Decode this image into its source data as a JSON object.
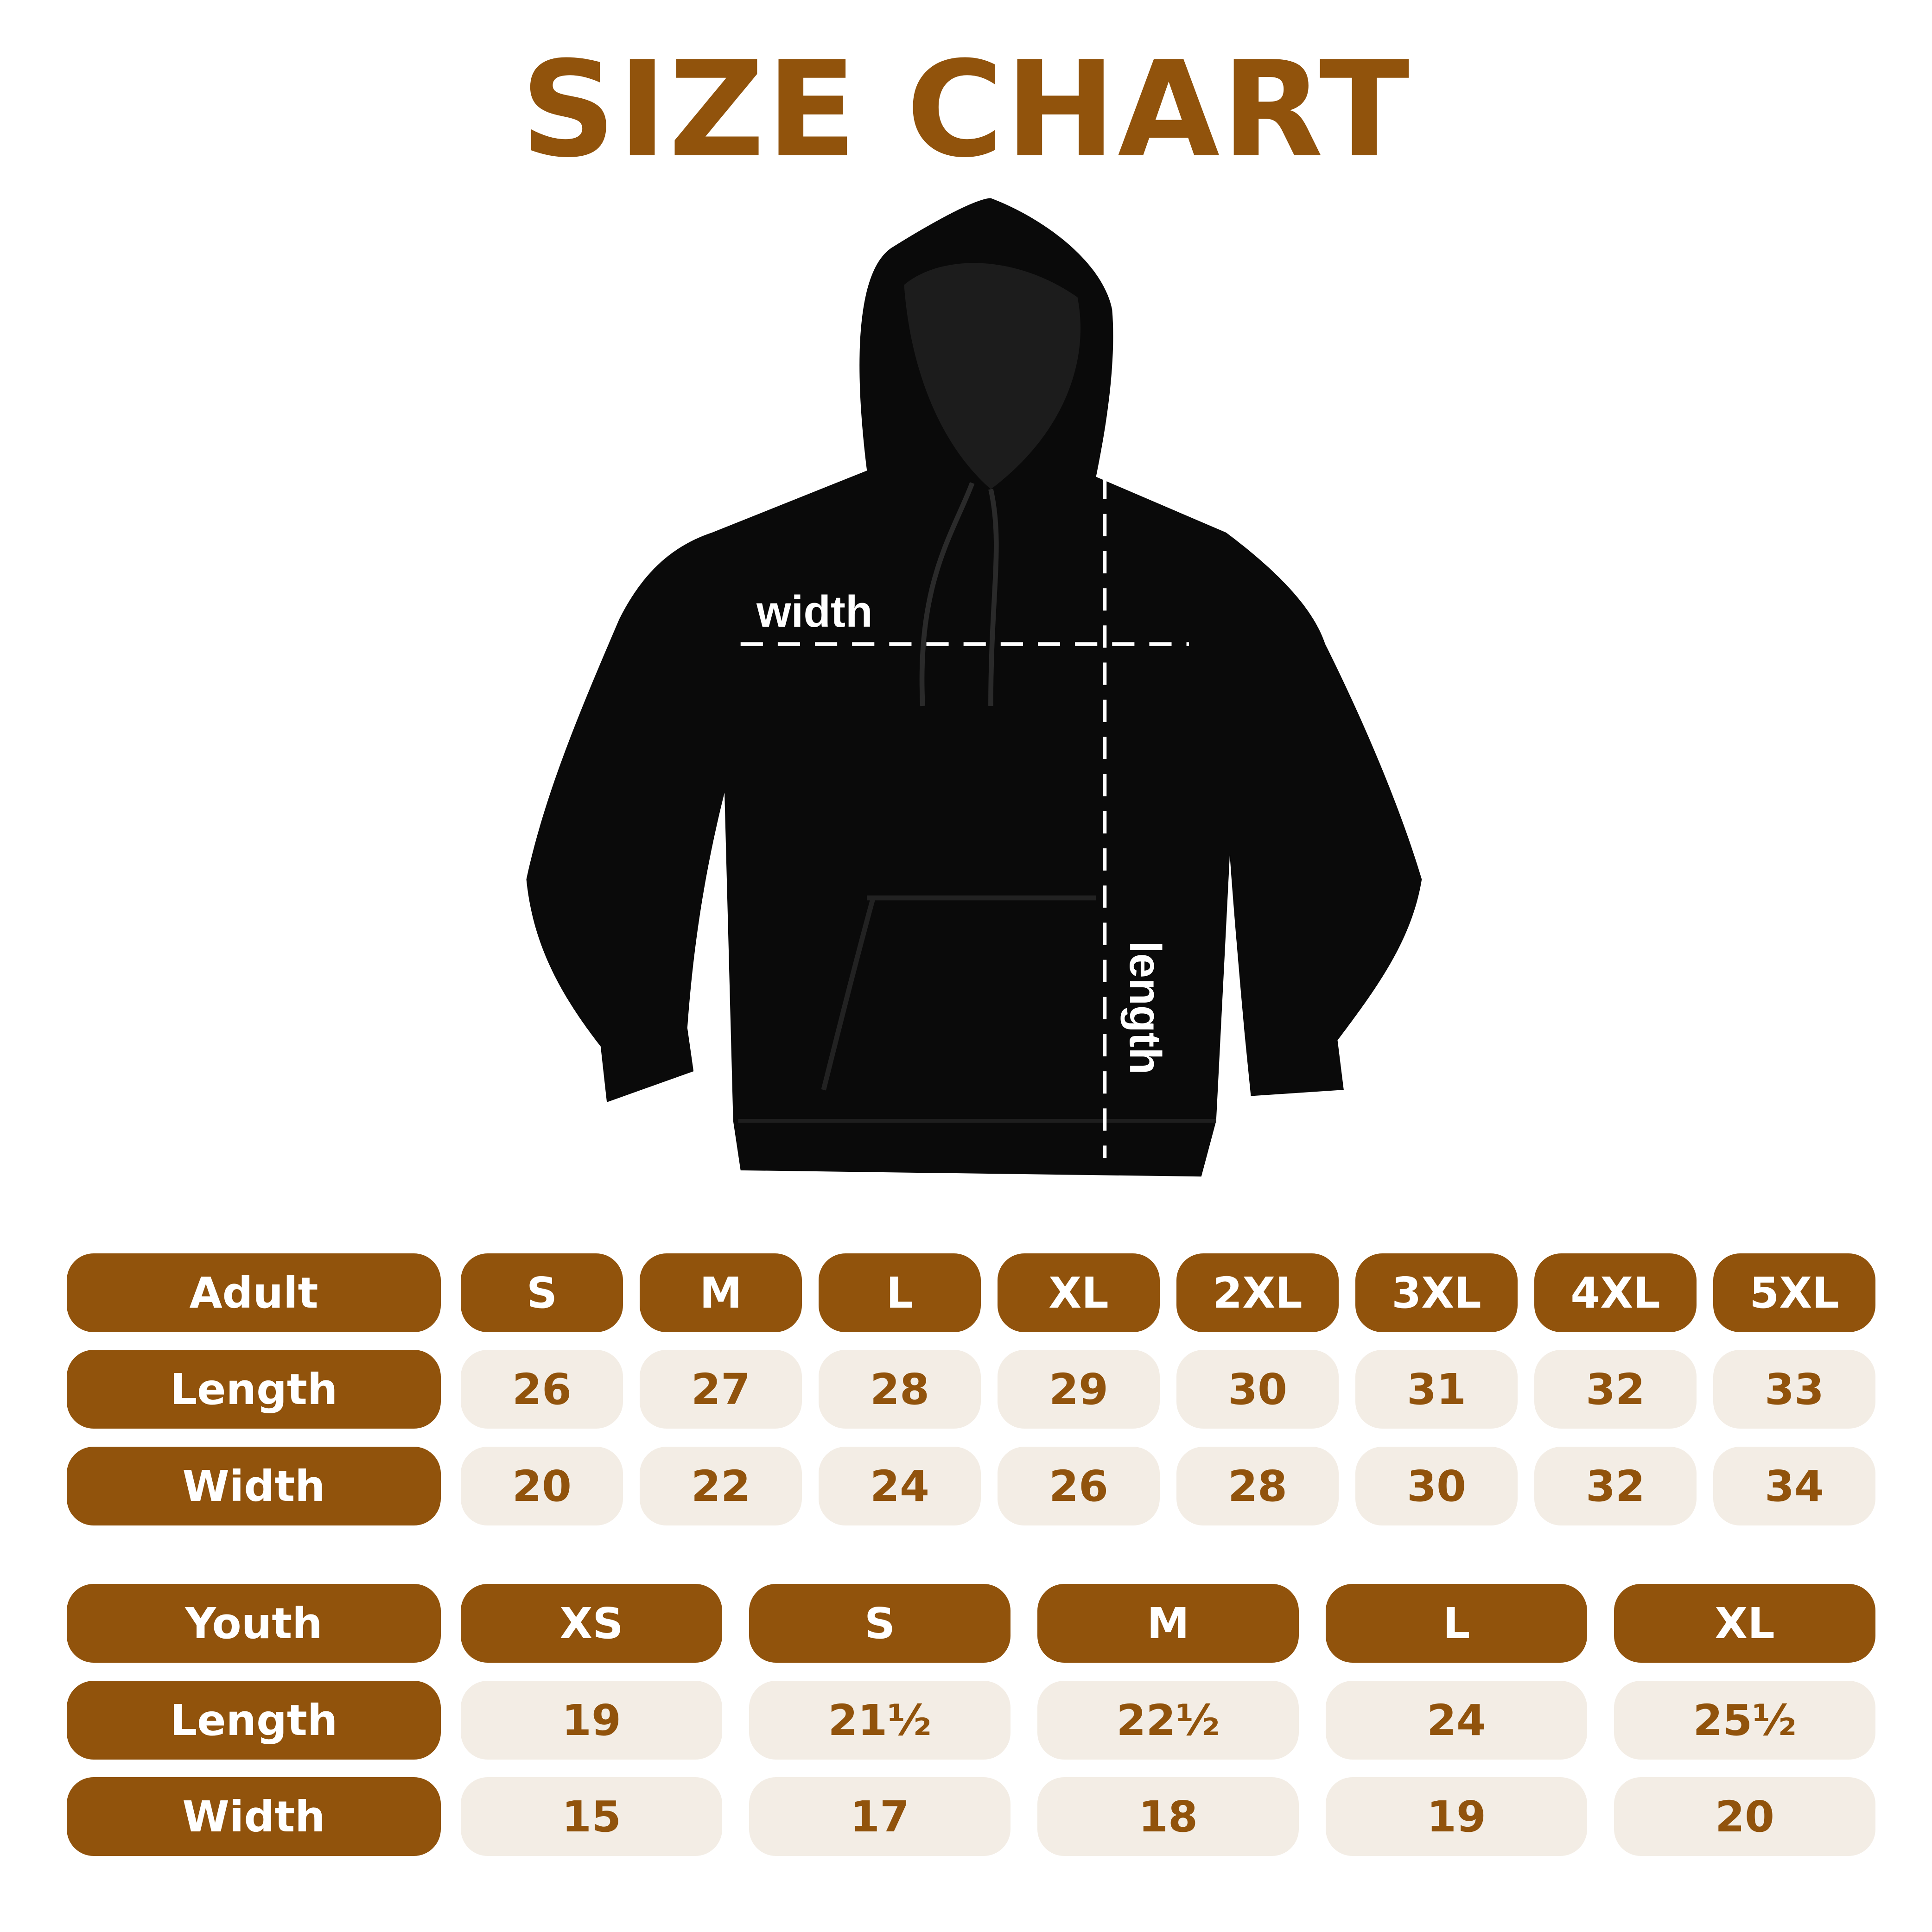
{
  "title": "SIZE CHART",
  "colors": {
    "brand": "#91530c",
    "cell_bg": "#f3ede5",
    "garment": "#0a0a0a"
  },
  "illustration": {
    "garment": "black hoodie",
    "width_label": "width",
    "length_label": "length"
  },
  "adult": {
    "header": "Adult",
    "sizes": [
      "S",
      "M",
      "L",
      "XL",
      "2XL",
      "3XL",
      "4XL",
      "5XL"
    ],
    "rows": [
      {
        "label": "Length",
        "values": [
          "26",
          "27",
          "28",
          "29",
          "30",
          "31",
          "32",
          "33"
        ]
      },
      {
        "label": "Width",
        "values": [
          "20",
          "22",
          "24",
          "26",
          "28",
          "30",
          "32",
          "34"
        ]
      }
    ]
  },
  "youth": {
    "header": "Youth",
    "sizes": [
      "XS",
      "S",
      "M",
      "L",
      "XL"
    ],
    "rows": [
      {
        "label": "Length",
        "values": [
          "19",
          "21½",
          "22½",
          "24",
          "25½"
        ]
      },
      {
        "label": "Width",
        "values": [
          "15",
          "17",
          "18",
          "19",
          "20"
        ]
      }
    ]
  }
}
